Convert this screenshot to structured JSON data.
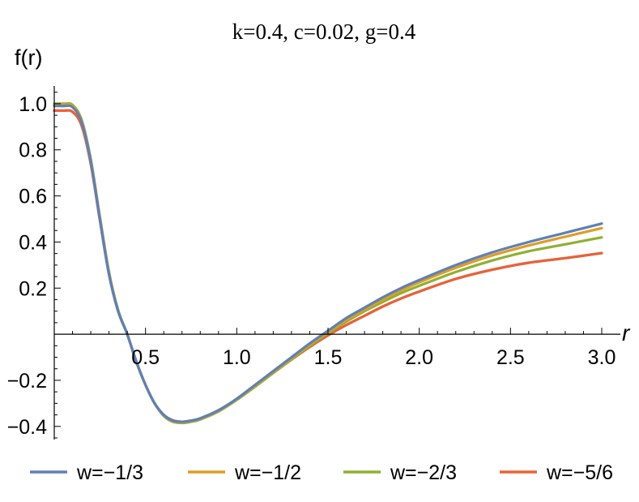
{
  "chart_data": {
    "type": "line",
    "title": "k=0.4, c=0.02, g=0.4",
    "ylabel": "f(r)",
    "xlabel": "r",
    "xlim": [
      0,
      3.0
    ],
    "ylim": [
      -0.45,
      1.07
    ],
    "x_ticks": [
      0.5,
      1.0,
      1.5,
      2.0,
      2.5,
      3.0
    ],
    "x_tick_labels": [
      "0.5",
      "1.0",
      "1.5",
      "2.0",
      "2.5",
      "3.0"
    ],
    "y_ticks": [
      -0.4,
      -0.2,
      0.2,
      0.4,
      0.6,
      0.8,
      1.0
    ],
    "y_tick_labels": [
      "−0.4",
      "−0.2",
      "0.2",
      "0.4",
      "0.6",
      "0.8",
      "1.0"
    ],
    "grid": false,
    "legend_position": "bottom",
    "series": [
      {
        "name": "w=−1/3",
        "color": "#5e81b5",
        "x": [
          0.0,
          0.05,
          0.1,
          0.15,
          0.2,
          0.25,
          0.3,
          0.35,
          0.4,
          0.45,
          0.5,
          0.55,
          0.6,
          0.65,
          0.7,
          0.75,
          0.8,
          0.9,
          1.0,
          1.1,
          1.2,
          1.3,
          1.4,
          1.5,
          1.6,
          1.7,
          1.8,
          1.9,
          2.0,
          2.2,
          2.4,
          2.6,
          2.8,
          3.0
        ],
        "y": [
          0.99,
          0.99,
          0.985,
          0.92,
          0.75,
          0.5,
          0.26,
          0.1,
          0.0,
          -0.12,
          -0.22,
          -0.3,
          -0.35,
          -0.375,
          -0.38,
          -0.375,
          -0.365,
          -0.33,
          -0.28,
          -0.22,
          -0.16,
          -0.1,
          -0.04,
          0.015,
          0.07,
          0.115,
          0.16,
          0.2,
          0.235,
          0.3,
          0.355,
          0.4,
          0.44,
          0.48
        ]
      },
      {
        "name": "w=−1/2",
        "color": "#e19c24",
        "x": [
          0.0,
          0.05,
          0.1,
          0.15,
          0.2,
          0.25,
          0.3,
          0.35,
          0.4,
          0.45,
          0.5,
          0.55,
          0.6,
          0.65,
          0.7,
          0.75,
          0.8,
          0.9,
          1.0,
          1.1,
          1.2,
          1.3,
          1.4,
          1.5,
          1.6,
          1.7,
          1.8,
          1.9,
          2.0,
          2.2,
          2.4,
          2.6,
          2.8,
          3.0
        ],
        "y": [
          0.995,
          0.995,
          0.99,
          0.925,
          0.755,
          0.505,
          0.265,
          0.1,
          0.0,
          -0.12,
          -0.22,
          -0.3,
          -0.352,
          -0.377,
          -0.382,
          -0.377,
          -0.367,
          -0.332,
          -0.282,
          -0.224,
          -0.164,
          -0.104,
          -0.045,
          0.01,
          0.062,
          0.107,
          0.15,
          0.19,
          0.225,
          0.288,
          0.342,
          0.385,
          0.423,
          0.46
        ]
      },
      {
        "name": "w=−2/3",
        "color": "#8fb032",
        "x": [
          0.0,
          0.05,
          0.1,
          0.15,
          0.2,
          0.25,
          0.3,
          0.35,
          0.4,
          0.45,
          0.5,
          0.55,
          0.6,
          0.65,
          0.7,
          0.75,
          0.8,
          0.9,
          1.0,
          1.1,
          1.2,
          1.3,
          1.4,
          1.5,
          1.6,
          1.7,
          1.8,
          1.9,
          2.0,
          2.2,
          2.4,
          2.6,
          2.8,
          3.0
        ],
        "y": [
          1.0,
          1.0,
          0.995,
          0.93,
          0.76,
          0.51,
          0.27,
          0.105,
          0.0,
          -0.12,
          -0.22,
          -0.3,
          -0.355,
          -0.38,
          -0.385,
          -0.38,
          -0.37,
          -0.335,
          -0.285,
          -0.228,
          -0.168,
          -0.108,
          -0.05,
          0.004,
          0.055,
          0.1,
          0.14,
          0.178,
          0.21,
          0.27,
          0.32,
          0.36,
          0.39,
          0.42
        ]
      },
      {
        "name": "w=−5/6",
        "color": "#eb6235",
        "x": [
          0.0,
          0.05,
          0.1,
          0.15,
          0.2,
          0.25,
          0.3,
          0.35,
          0.4,
          0.45,
          0.5,
          0.55,
          0.6,
          0.65,
          0.7,
          0.75,
          0.8,
          0.9,
          1.0,
          1.1,
          1.2,
          1.3,
          1.4,
          1.5,
          1.6,
          1.7,
          1.8,
          1.9,
          2.0,
          2.2,
          2.4,
          2.6,
          2.8,
          3.0
        ],
        "y": [
          0.97,
          0.97,
          0.965,
          0.905,
          0.74,
          0.495,
          0.26,
          0.1,
          0.0,
          -0.12,
          -0.22,
          -0.3,
          -0.35,
          -0.374,
          -0.38,
          -0.375,
          -0.365,
          -0.33,
          -0.282,
          -0.226,
          -0.168,
          -0.11,
          -0.055,
          -0.005,
          0.04,
          0.08,
          0.12,
          0.155,
          0.185,
          0.24,
          0.28,
          0.31,
          0.33,
          0.352
        ]
      },
      {
        "name": "",
        "color": "#8778b3",
        "x": [
          0.0,
          0.05,
          0.1,
          0.15,
          0.2,
          0.25,
          0.3,
          0.35,
          0.4,
          0.45,
          0.5,
          0.55,
          0.6,
          0.65,
          0.7,
          0.75,
          0.8,
          0.9,
          1.0,
          1.1,
          1.2,
          1.3,
          1.4,
          1.5,
          1.6,
          1.7,
          1.8,
          1.9,
          2.0,
          2.2,
          2.4,
          2.6,
          2.8,
          3.0
        ],
        "y": [
          0.97,
          0.97,
          0.965,
          0.905,
          0.74,
          0.495,
          0.26,
          0.1,
          0.0,
          -0.12,
          -0.22,
          -0.3,
          -0.35,
          -0.374,
          -0.38,
          -0.375,
          -0.365,
          -0.33,
          -0.282,
          -0.226,
          -0.168,
          -0.11,
          -0.055,
          -0.005,
          0.04,
          0.08,
          0.12,
          0.155,
          0.185,
          0.24,
          0.28,
          0.31,
          0.33,
          0.352
        ]
      }
    ],
    "legend": [
      {
        "label": "w=−1/3",
        "color": "#5e81b5"
      },
      {
        "label": "w=−1/2",
        "color": "#e19c24"
      },
      {
        "label": "w=−2/3",
        "color": "#8fb032"
      },
      {
        "label": "w=−5/6",
        "color": "#eb6235"
      }
    ]
  }
}
